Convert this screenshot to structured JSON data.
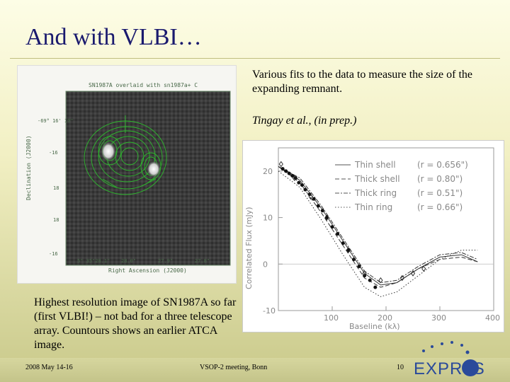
{
  "slide": {
    "title": "And with VLBI…",
    "description": "Various fits to the data to measure the size of the expanding remnant.",
    "citation": "Tingay et al., (in prep.)",
    "caption": "Highest resolution image of SN1987A so far (first VLBI!) – not bad for a three telescope array. Countours shows an earlier ATCA image."
  },
  "left_image": {
    "title": "SN1987A overlaid with sn1987a+ C",
    "ylabel": "Declination (J2000)",
    "xlabel": "Right Ascension (J2000)",
    "y_ticks": [
      "-69° 16' 10\"",
      "-16",
      "18",
      "18",
      "-16"
    ],
    "x_ticks": [
      "5\" 35\"28.1\"",
      "28.0\"",
      "27.9\"",
      "27.8\""
    ]
  },
  "chart_data": {
    "type": "line",
    "xlabel": "Baseline (kλ)",
    "ylabel": "Correlated Flux (mJy)",
    "xlim": [
      0,
      400
    ],
    "ylim": [
      -10,
      25
    ],
    "x_ticks": [
      100,
      200,
      300,
      400
    ],
    "y_ticks": [
      -10,
      0,
      10,
      20
    ],
    "legend_position": "top-right",
    "series": [
      {
        "name": "Thin shell",
        "r_label": "(r = 0.656\")",
        "style": "solid",
        "x": [
          0,
          40,
          80,
          120,
          160,
          190,
          220,
          260,
          300,
          340,
          370
        ],
        "y": [
          21,
          18,
          12,
          5,
          -2,
          -4.5,
          -4,
          -1,
          1.5,
          2,
          0.5
        ]
      },
      {
        "name": "Thick shell",
        "r_label": "(r = 0.80\")",
        "style": "dashed",
        "x": [
          0,
          40,
          80,
          120,
          160,
          190,
          220,
          260,
          300,
          340,
          370
        ],
        "y": [
          21,
          17.5,
          11,
          4,
          -3,
          -5,
          -4,
          -1,
          1,
          1.5,
          0.5
        ]
      },
      {
        "name": "Thick ring",
        "r_label": "(r = 0.51\")",
        "style": "dash-dot",
        "x": [
          0,
          40,
          80,
          120,
          160,
          190,
          220,
          260,
          300,
          340,
          370
        ],
        "y": [
          21,
          18.5,
          12.5,
          5.5,
          -1.5,
          -4,
          -3.5,
          -0.5,
          2,
          2.5,
          1
        ]
      },
      {
        "name": "Thin ring",
        "r_label": "(r = 0.66\")",
        "style": "dotted",
        "x": [
          0,
          40,
          80,
          120,
          160,
          190,
          220,
          260,
          300,
          340,
          370
        ],
        "y": [
          20,
          16.5,
          9.5,
          2,
          -5,
          -7,
          -6,
          -2.5,
          1,
          3,
          3
        ]
      }
    ],
    "points_filled": {
      "x": [
        8,
        14,
        20,
        26,
        32,
        38,
        44,
        50,
        58,
        66,
        74,
        82,
        90,
        100,
        110,
        120,
        130,
        140,
        150,
        160,
        170,
        180
      ],
      "y": [
        20.5,
        20,
        19.5,
        19,
        18.5,
        17.5,
        17,
        16,
        15,
        14,
        12.5,
        11.5,
        10,
        8,
        6.5,
        4.5,
        3,
        1,
        -0.5,
        -2.5,
        -3.5,
        -5
      ]
    },
    "points_open": {
      "x": [
        5,
        30,
        60,
        90,
        130,
        160,
        190,
        230,
        250,
        270
      ],
      "y": [
        21.5,
        18.5,
        14.5,
        10,
        3,
        -2,
        -3.5,
        -3,
        -2,
        -1
      ]
    }
  },
  "footer": {
    "date": "2008 May 14-16",
    "meeting": "VSOP-2 meeting, Bonn",
    "page": "10",
    "logo": "EXPReS"
  }
}
